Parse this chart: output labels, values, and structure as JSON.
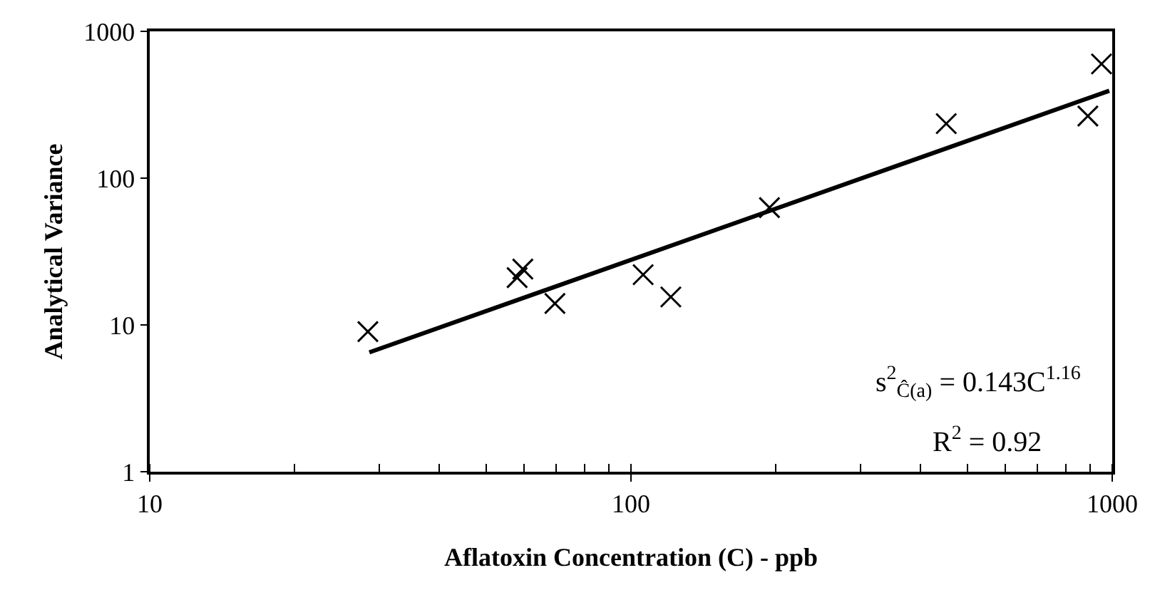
{
  "chart_data": {
    "type": "scatter",
    "xlabel": "Aflatoxin Concentration (C) - ppb",
    "ylabel": "Analytical Variance",
    "log": "xy",
    "xlim": [
      10,
      1000
    ],
    "ylim": [
      1,
      1000
    ],
    "xticks": [
      10,
      100,
      1000
    ],
    "yticks": [
      1,
      10,
      100,
      1000
    ],
    "legend": false,
    "marker": "cross",
    "series": [
      {
        "color": "#000000",
        "x": [
          28.4,
          59.6,
          58,
          69.5,
          106,
          121,
          194,
          452,
          890,
          950
        ],
        "values": [
          9,
          24,
          21,
          14,
          22,
          15.5,
          63,
          235,
          265,
          600
        ]
      },
      {
        "type": "line",
        "marker": "none",
        "color": "#000000",
        "line_style": "solid",
        "x": [
          28.6,
          986
        ],
        "values": [
          6.5,
          394
        ]
      }
    ],
    "annotations": [
      "s$^{2}$$_{Ĉ(a)}$ = 0.143C$^{1.16}$",
      "R$^{2}$ = 0.92"
    ]
  }
}
